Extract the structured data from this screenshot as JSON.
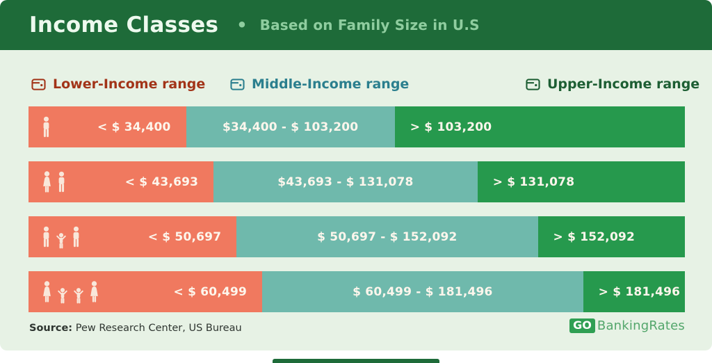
{
  "header": {
    "title": "Income Classes",
    "separator": "•",
    "subtitle": "Based on Family Size in U.S",
    "bg_color": "#1E6B39",
    "title_color": "#EDF9EE",
    "subtitle_color": "#8FCD9F"
  },
  "legend": [
    {
      "label": "Lower-Income range",
      "color": "#A23418",
      "icon": "wallet-icon"
    },
    {
      "label": "Middle-Income range",
      "color": "#2B7F8E",
      "icon": "wallet-icon"
    },
    {
      "label": "Upper-Income range",
      "color": "#1D5E33",
      "icon": "wallet-icon"
    }
  ],
  "chart_data": {
    "type": "bar",
    "orientation": "horizontal",
    "stacked": true,
    "title": "Income Classes — Based on Family Size in U.S",
    "categories": [
      "1 person",
      "2 people",
      "3 people",
      "4 people"
    ],
    "segment_keys": [
      "lower",
      "middle",
      "upper"
    ],
    "colors": {
      "lower": "#F0795F",
      "middle": "#6FB9AC",
      "upper": "#26994D"
    },
    "label_color": "#FDF6EC",
    "icon_color": "#F9E7DA",
    "rows": [
      {
        "family_size": 1,
        "icons": [
          "adult"
        ],
        "lower": {
          "label": "< $ 34,400",
          "pct": 24.0,
          "threshold": 34400
        },
        "middle": {
          "label": "$34,400 - $ 103,200",
          "pct": 31.8,
          "min": 34400,
          "max": 103200
        },
        "upper": {
          "label": "> $ 103,200",
          "pct": 44.2,
          "threshold": 103200
        }
      },
      {
        "family_size": 2,
        "icons": [
          "woman",
          "adult"
        ],
        "lower": {
          "label": "< $ 43,693",
          "pct": 28.2,
          "threshold": 43693
        },
        "middle": {
          "label": "$43,693 - $ 131,078",
          "pct": 40.2,
          "min": 43693,
          "max": 131078
        },
        "upper": {
          "label": "> $ 131,078",
          "pct": 31.6,
          "threshold": 131078
        }
      },
      {
        "family_size": 3,
        "icons": [
          "adult",
          "child",
          "adult"
        ],
        "lower": {
          "label": "< $ 50,697",
          "pct": 31.7,
          "threshold": 50697
        },
        "middle": {
          "label": "$ 50,697 - $ 152,092",
          "pct": 45.9,
          "min": 50697,
          "max": 152092
        },
        "upper": {
          "label": "> $ 152,092",
          "pct": 22.4,
          "threshold": 152092
        }
      },
      {
        "family_size": 4,
        "icons": [
          "woman",
          "child",
          "child",
          "woman"
        ],
        "lower": {
          "label": "< $ 60,499",
          "pct": 35.6,
          "threshold": 60499
        },
        "middle": {
          "label": "$ 60,499 - $ 181,496",
          "pct": 48.9,
          "min": 60499,
          "max": 181496
        },
        "upper": {
          "label": "> $ 181,496",
          "pct": 15.5,
          "threshold": 181496
        }
      }
    ]
  },
  "footer": {
    "source_label": "Source:",
    "source_text": " Pew Research Center, US Bureau",
    "logo": {
      "go": "GO",
      "rest": "BankingRates",
      "go_bg": "#2F9F53",
      "text_color": "#53A66B"
    }
  },
  "colors": {
    "page_bg": "#E7F2E5",
    "header_bg": "#1E6B39",
    "bottom_strip": "#1E6B39"
  }
}
